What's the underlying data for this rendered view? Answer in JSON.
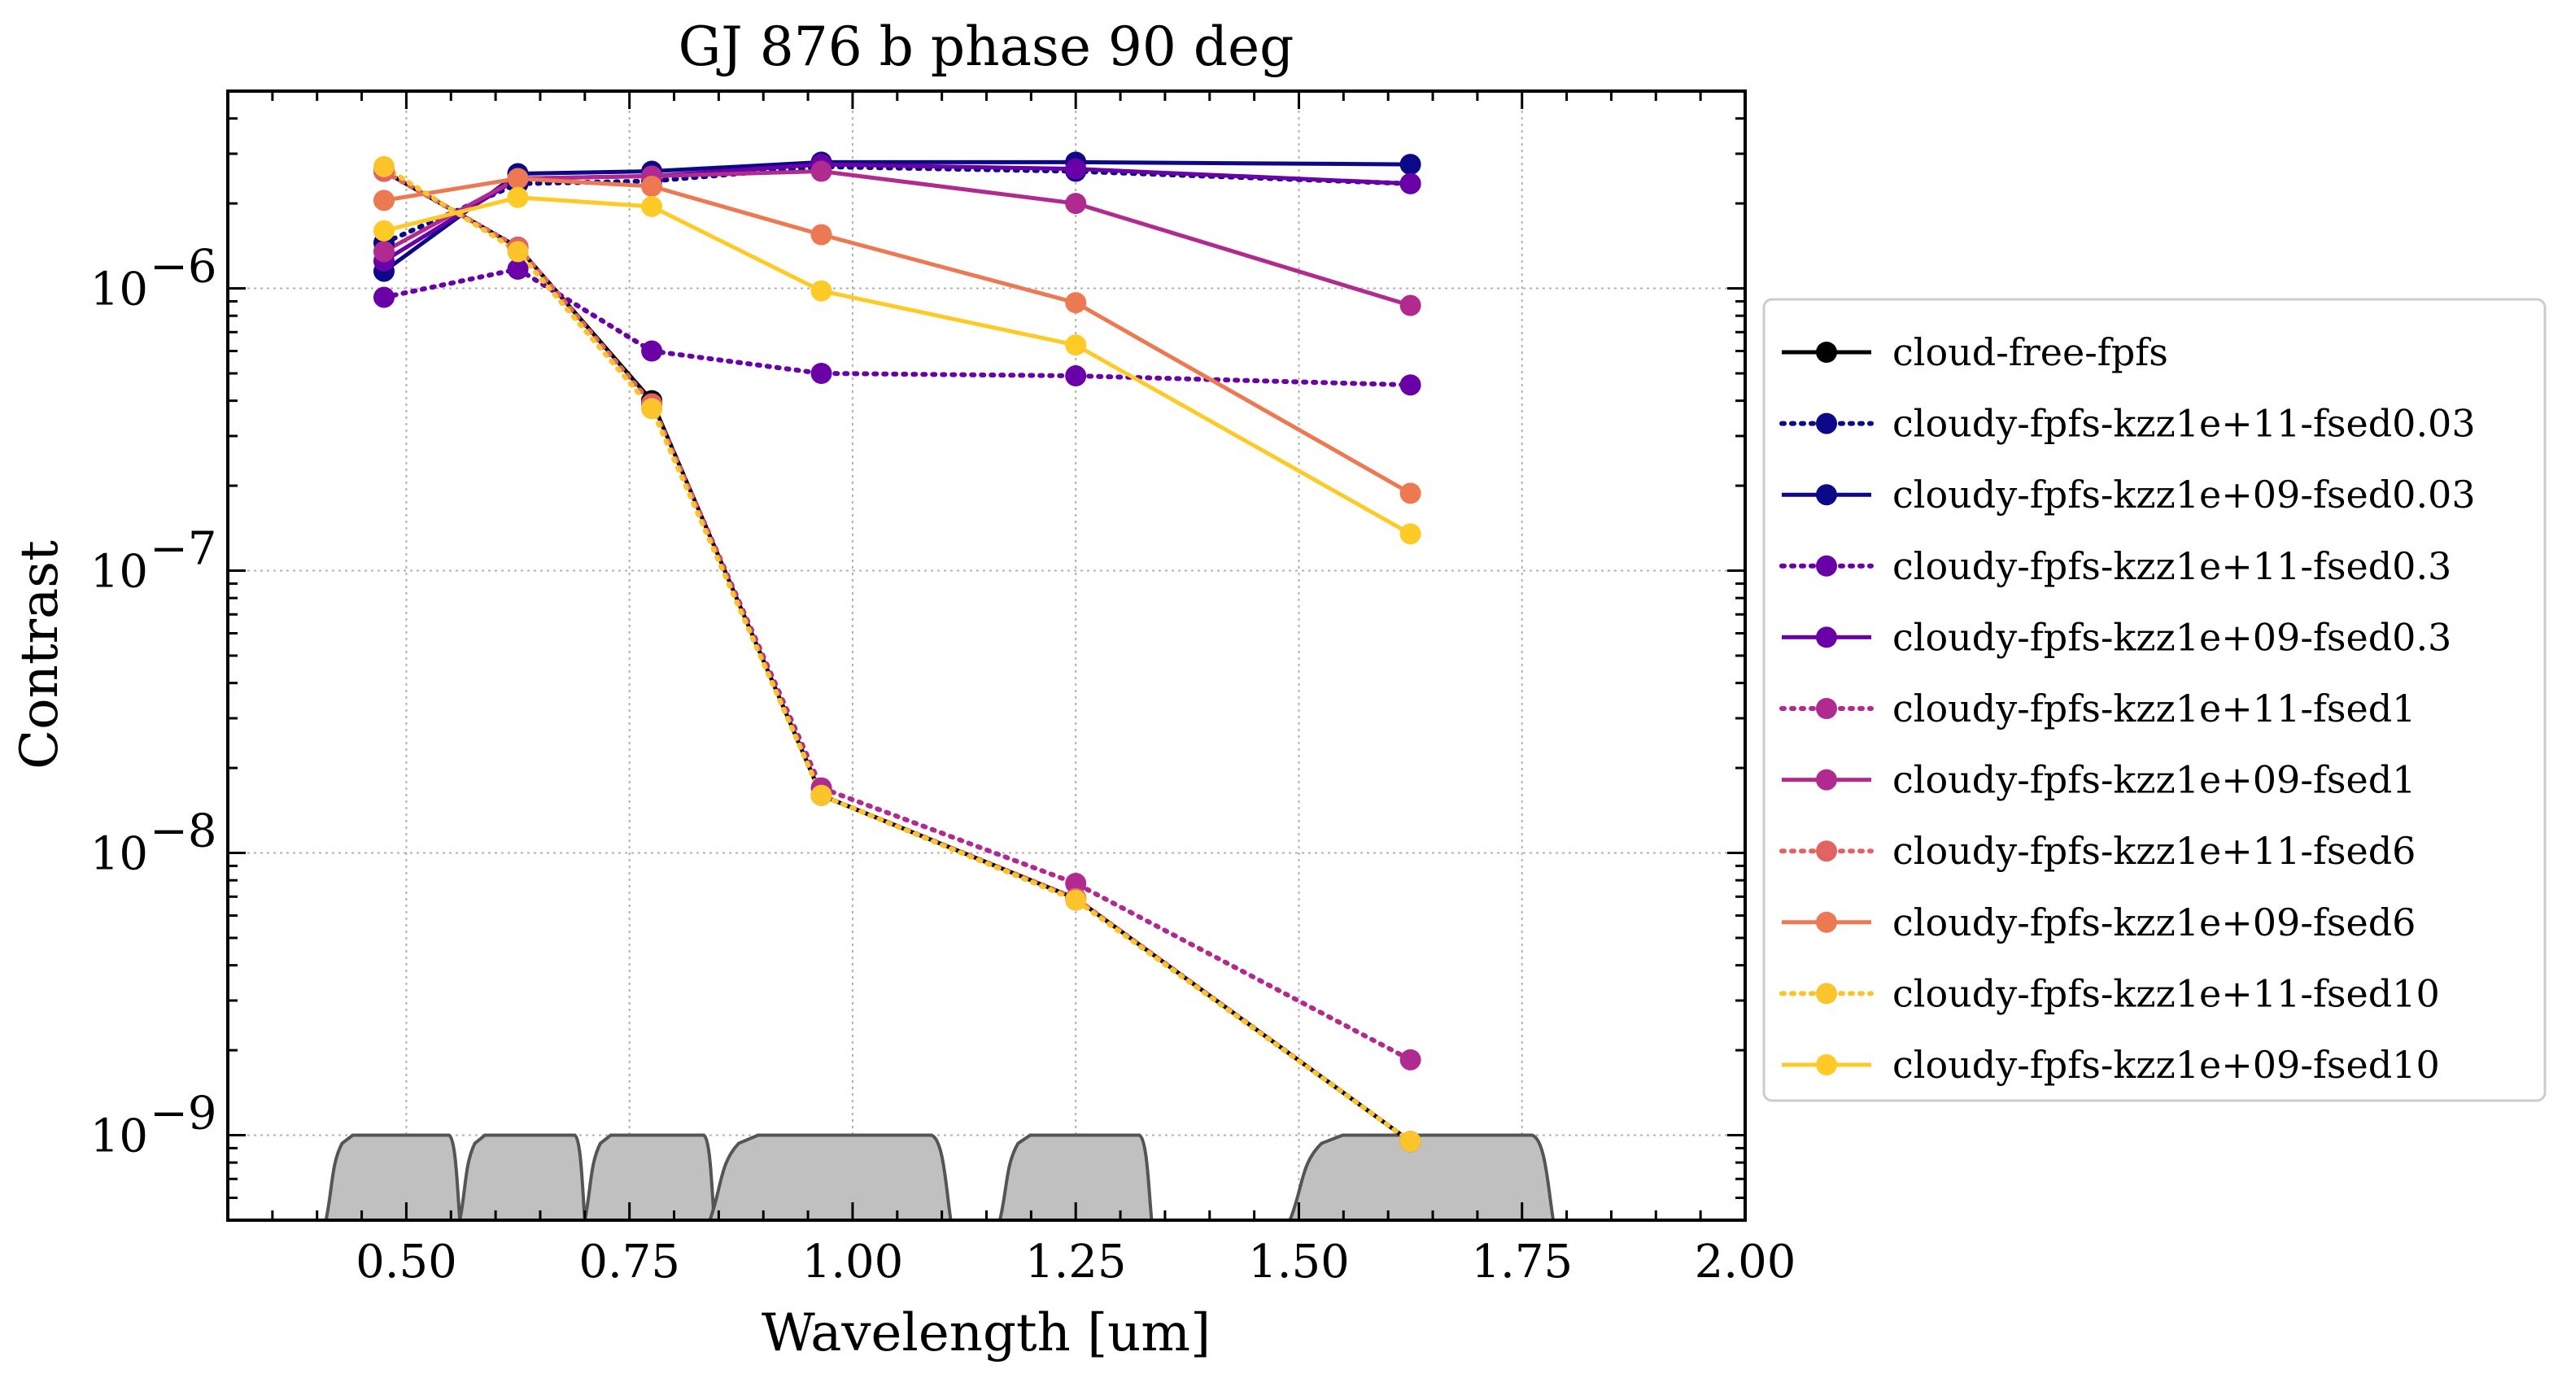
{
  "chart_data": {
    "type": "line",
    "title": "GJ 876 b phase 90 deg",
    "xlabel": "Wavelength [um]",
    "ylabel": "Contrast",
    "xlim": [
      0.3,
      2.0
    ],
    "ylim": [
      5e-10,
      5e-06
    ],
    "yscale": "log",
    "grid": true,
    "legend_position": "right-outside",
    "x_ticks": [
      "0.50",
      "0.75",
      "1.00",
      "1.25",
      "1.50",
      "1.75",
      "2.00"
    ],
    "x_tick_values": [
      0.5,
      0.75,
      1.0,
      1.25,
      1.5,
      1.75,
      2.0
    ],
    "y_ticks": [
      {
        "value": 1e-09,
        "base": "10",
        "exp": "−9"
      },
      {
        "value": 1e-08,
        "base": "10",
        "exp": "−8"
      },
      {
        "value": 1e-07,
        "base": "10",
        "exp": "−7"
      },
      {
        "value": 1e-06,
        "base": "10",
        "exp": "−6"
      }
    ],
    "x": [
      0.475,
      0.625,
      0.775,
      0.965,
      1.25,
      1.625
    ],
    "series": [
      {
        "name": "cloud-free-fpfs",
        "color": "#000000",
        "style": "solid",
        "values": [
          2.6e-06,
          1.4e-06,
          4e-07,
          1.6e-08,
          6.9e-09,
          9.5e-10
        ]
      },
      {
        "name": "cloudy-fpfs-kzz1e+11-fsed0.03",
        "color": "#0d0887",
        "style": "dotted",
        "values": [
          1.45e-06,
          2.35e-06,
          2.4e-06,
          2.7e-06,
          2.6e-06,
          2.35e-06
        ]
      },
      {
        "name": "cloudy-fpfs-kzz1e+09-fsed0.03",
        "color": "#0d0887",
        "style": "solid",
        "values": [
          1.15e-06,
          2.55e-06,
          2.6e-06,
          2.8e-06,
          2.8e-06,
          2.75e-06
        ]
      },
      {
        "name": "cloudy-fpfs-kzz1e+11-fsed0.3",
        "color": "#6a00a8",
        "style": "dotted",
        "values": [
          9.3e-07,
          1.17e-06,
          6e-07,
          5e-07,
          4.9e-07,
          4.55e-07
        ]
      },
      {
        "name": "cloudy-fpfs-kzz1e+09-fsed0.3",
        "color": "#6a00a8",
        "style": "solid",
        "values": [
          1.25e-06,
          2.45e-06,
          2.5e-06,
          2.75e-06,
          2.65e-06,
          2.35e-06
        ]
      },
      {
        "name": "cloudy-fpfs-kzz1e+11-fsed1",
        "color": "#b12a90",
        "style": "dotted",
        "values": [
          2.6e-06,
          1.4e-06,
          3.9e-07,
          1.7e-08,
          7.8e-09,
          1.85e-09
        ]
      },
      {
        "name": "cloudy-fpfs-kzz1e+09-fsed1",
        "color": "#b12a90",
        "style": "solid",
        "values": [
          1.35e-06,
          2.45e-06,
          2.5e-06,
          2.6e-06,
          2e-06,
          8.7e-07
        ]
      },
      {
        "name": "cloudy-fpfs-kzz1e+11-fsed6",
        "color": "#e16462",
        "style": "dotted",
        "values": [
          2.6e-06,
          1.4e-06,
          3.9e-07,
          1.6e-08,
          6.9e-09,
          9.5e-10
        ]
      },
      {
        "name": "cloudy-fpfs-kzz1e+09-fsed6",
        "color": "#ed7953",
        "style": "solid",
        "values": [
          2.05e-06,
          2.45e-06,
          2.3e-06,
          1.55e-06,
          8.9e-07,
          1.88e-07
        ]
      },
      {
        "name": "cloudy-fpfs-kzz1e+11-fsed10",
        "color": "#fbc42a",
        "style": "dotted",
        "values": [
          2.7e-06,
          1.35e-06,
          3.75e-07,
          1.6e-08,
          6.8e-09,
          9.5e-10
        ]
      },
      {
        "name": "cloudy-fpfs-kzz1e+09-fsed10",
        "color": "#fdca26",
        "style": "solid",
        "values": [
          1.6e-06,
          2.1e-06,
          1.95e-06,
          9.8e-07,
          6.3e-07,
          1.35e-07
        ]
      }
    ],
    "filter_bands": [
      {
        "start": 0.41,
        "end": 0.56
      },
      {
        "start": 0.56,
        "end": 0.7
      },
      {
        "start": 0.7,
        "end": 0.845
      },
      {
        "start": 0.84,
        "end": 1.11
      },
      {
        "start": 1.165,
        "end": 1.335
      },
      {
        "start": 1.49,
        "end": 1.785
      }
    ],
    "filter_band_color": "#c0c0c0"
  }
}
